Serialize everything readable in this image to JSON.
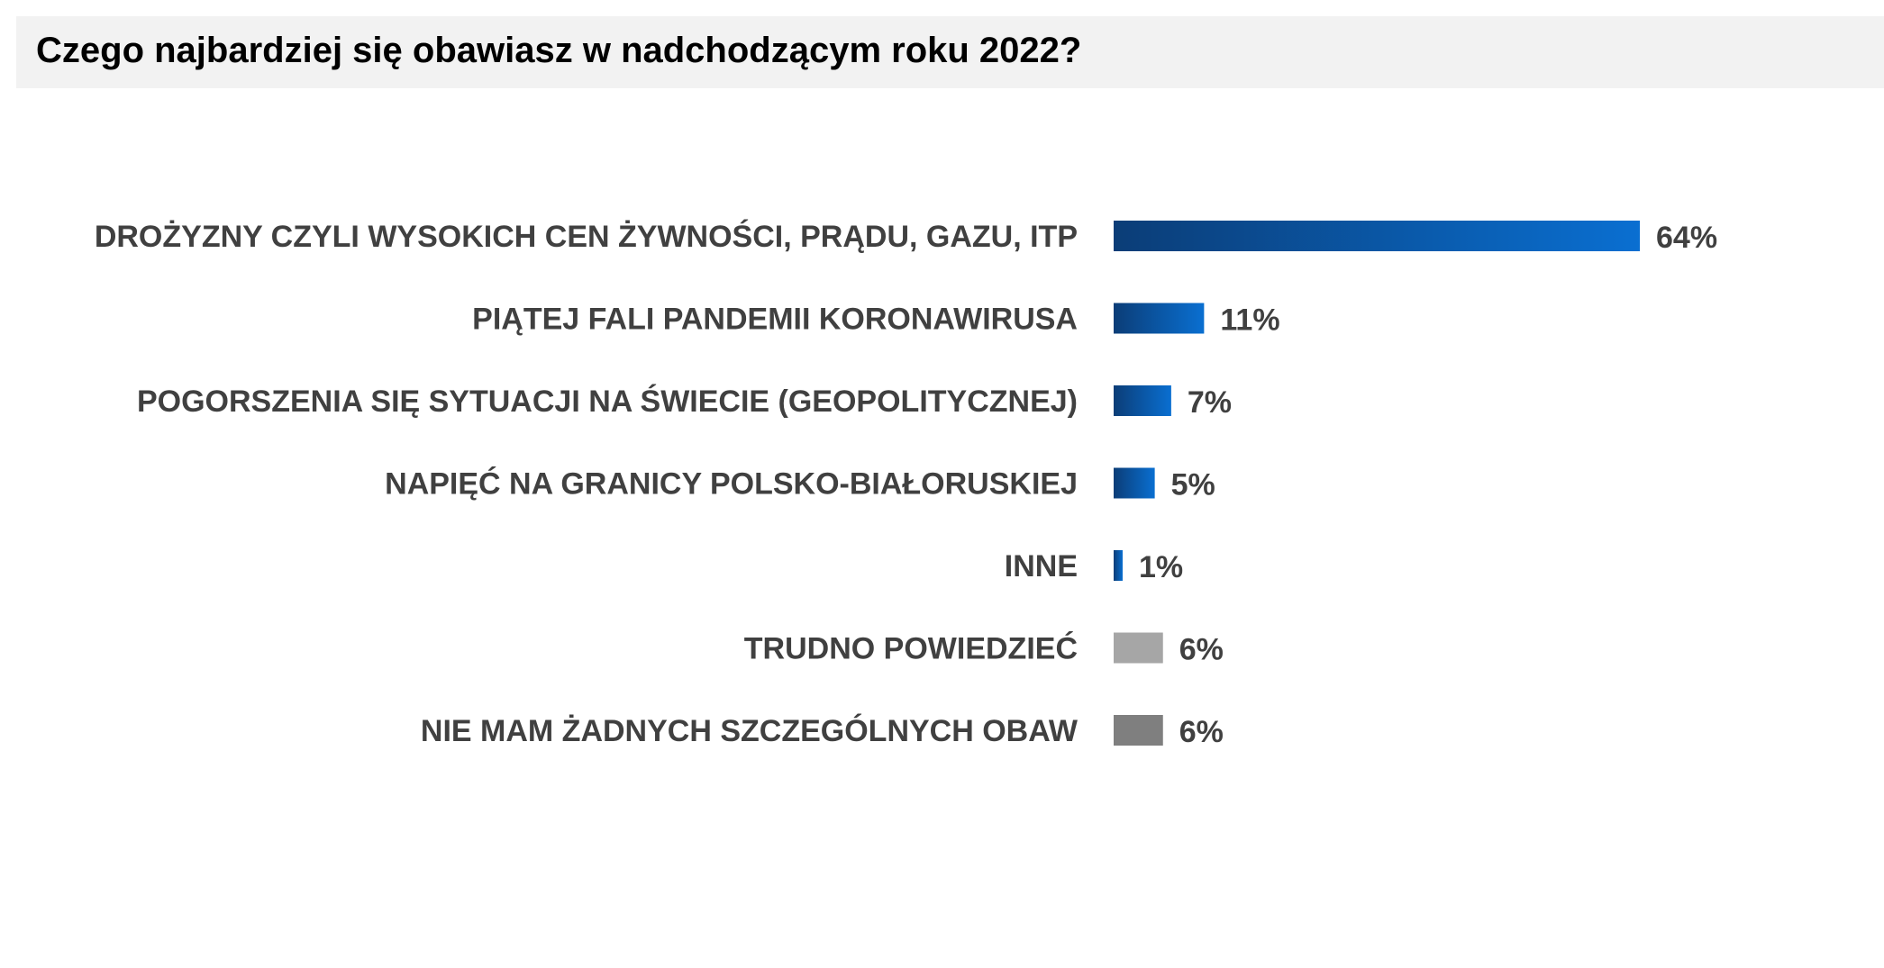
{
  "title": "Czego najbardziej się obawiasz w nadchodzącym roku 2022?",
  "colors": {
    "blue_dark": "#0b3d77",
    "blue_light": "#0a6fd1",
    "gray_light": "#a6a6a6",
    "gray_dark": "#7f7f7f",
    "text": "#404040",
    "title_bg": "#f2f2f2"
  },
  "chart_data": {
    "type": "bar",
    "orientation": "horizontal",
    "title": "Czego najbardziej się obawiasz w nadchodzącym roku 2022?",
    "xlim": [
      0,
      64
    ],
    "grid": false,
    "categories": [
      "DROŻYZNY CZYLI WYSOKICH CEN ŻYWNOŚCI, PRĄDU, GAZU, ITP",
      "PIĄTEJ FALI PANDEMII KORONAWIRUSA",
      "POGORSZENIA SIĘ SYTUACJI NA ŚWIECIE (GEOPOLITYCZNEJ)",
      "NAPIĘĆ NA GRANICY POLSKO-BIAŁORUSKIEJ",
      "INNE",
      "TRUDNO POWIEDZIEĆ",
      "NIE MAM ŻADNYCH SZCZEGÓLNYCH OBAW"
    ],
    "values": [
      64,
      11,
      7,
      5,
      1,
      6,
      6
    ],
    "value_labels": [
      "64%",
      "11%",
      "7%",
      "5%",
      "1%",
      "6%",
      "6%"
    ],
    "bar_styles": [
      "blue-gradient",
      "blue-gradient",
      "blue-gradient",
      "blue-gradient",
      "blue-gradient",
      "gray-light",
      "gray-dark"
    ]
  }
}
